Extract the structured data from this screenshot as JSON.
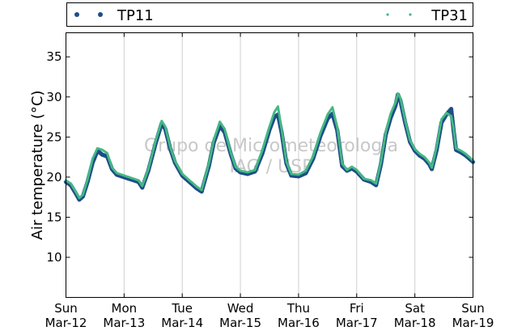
{
  "chart_data": {
    "type": "scatter",
    "title": "",
    "xlabel": "",
    "ylabel": "Air temperature (°C)",
    "x_range": [
      "2017-03-12T00:00",
      "2017-03-19T00:00"
    ],
    "ylim": [
      5,
      38
    ],
    "yticks": [
      10,
      15,
      20,
      25,
      30,
      35
    ],
    "xtick_labels": [
      [
        "Sun",
        "Mar-12"
      ],
      [
        "Mon",
        "Mar-13"
      ],
      [
        "Tue",
        "Mar-14"
      ],
      [
        "Wed",
        "Mar-15"
      ],
      [
        "Thu",
        "Mar-16"
      ],
      [
        "Fri",
        "Mar-17"
      ],
      [
        "Sat",
        "Mar-18"
      ],
      [
        "Sun",
        "Mar-19"
      ]
    ],
    "grid": "vertical",
    "legend_position": "top",
    "watermark": [
      "Grupo de Micrometeorologia",
      "IAG / USP"
    ],
    "series": [
      {
        "name": "TP11",
        "color": "#1f4e87",
        "marker": "dot",
        "points": [
          [
            "2017-03-12T00:00",
            19.4
          ],
          [
            "2017-03-12T02:00",
            19.0
          ],
          [
            "2017-03-12T04:00",
            18.0
          ],
          [
            "2017-03-12T05:30",
            17.2
          ],
          [
            "2017-03-12T07:00",
            17.6
          ],
          [
            "2017-03-12T09:00",
            19.5
          ],
          [
            "2017-03-12T11:00",
            21.8
          ],
          [
            "2017-03-12T13:00",
            23.3
          ],
          [
            "2017-03-12T15:00",
            22.8
          ],
          [
            "2017-03-12T17:00",
            22.6
          ],
          [
            "2017-03-12T19:00",
            21.0
          ],
          [
            "2017-03-12T21:00",
            20.3
          ],
          [
            "2017-03-13T00:00",
            20.0
          ],
          [
            "2017-03-13T03:00",
            19.7
          ],
          [
            "2017-03-13T06:00",
            19.4
          ],
          [
            "2017-03-13T07:30",
            18.7
          ],
          [
            "2017-03-13T10:00",
            20.8
          ],
          [
            "2017-03-13T13:00",
            24.2
          ],
          [
            "2017-03-13T15:30",
            26.7
          ],
          [
            "2017-03-13T17:00",
            26.0
          ],
          [
            "2017-03-13T19:00",
            23.6
          ],
          [
            "2017-03-13T21:00",
            21.8
          ],
          [
            "2017-03-14T00:00",
            20.2
          ],
          [
            "2017-03-14T03:00",
            19.4
          ],
          [
            "2017-03-14T06:00",
            18.6
          ],
          [
            "2017-03-14T08:00",
            18.2
          ],
          [
            "2017-03-14T11:00",
            21.4
          ],
          [
            "2017-03-14T13:00",
            24.3
          ],
          [
            "2017-03-14T15:30",
            26.4
          ],
          [
            "2017-03-14T17:30",
            25.6
          ],
          [
            "2017-03-14T20:00",
            22.9
          ],
          [
            "2017-03-14T22:00",
            21.1
          ],
          [
            "2017-03-15T00:00",
            20.6
          ],
          [
            "2017-03-15T03:00",
            20.4
          ],
          [
            "2017-03-15T06:00",
            20.7
          ],
          [
            "2017-03-15T09:00",
            22.9
          ],
          [
            "2017-03-15T12:00",
            25.9
          ],
          [
            "2017-03-15T14:00",
            27.5
          ],
          [
            "2017-03-15T15:30",
            27.8
          ],
          [
            "2017-03-15T17:00",
            25.6
          ],
          [
            "2017-03-15T19:00",
            21.7
          ],
          [
            "2017-03-15T21:00",
            20.2
          ],
          [
            "2017-03-16T00:00",
            20.1
          ],
          [
            "2017-03-16T03:00",
            20.5
          ],
          [
            "2017-03-16T06:00",
            22.3
          ],
          [
            "2017-03-16T09:00",
            25.1
          ],
          [
            "2017-03-16T12:00",
            27.3
          ],
          [
            "2017-03-16T14:00",
            27.9
          ],
          [
            "2017-03-16T16:00",
            25.8
          ],
          [
            "2017-03-16T18:00",
            21.4
          ],
          [
            "2017-03-16T20:00",
            20.8
          ],
          [
            "2017-03-16T22:00",
            21.1
          ],
          [
            "2017-03-17T00:00",
            20.7
          ],
          [
            "2017-03-17T03:00",
            19.7
          ],
          [
            "2017-03-17T06:00",
            19.4
          ],
          [
            "2017-03-17T08:00",
            19.0
          ],
          [
            "2017-03-17T10:00",
            21.6
          ],
          [
            "2017-03-17T12:00",
            25.3
          ],
          [
            "2017-03-17T14:00",
            27.4
          ],
          [
            "2017-03-17T16:00",
            28.9
          ],
          [
            "2017-03-17T17:00",
            30.3
          ],
          [
            "2017-03-17T18:00",
            29.6
          ],
          [
            "2017-03-17T20:00",
            26.8
          ],
          [
            "2017-03-17T22:00",
            24.4
          ],
          [
            "2017-03-18T00:00",
            23.3
          ],
          [
            "2017-03-18T02:00",
            22.7
          ],
          [
            "2017-03-18T04:00",
            22.3
          ],
          [
            "2017-03-18T06:00",
            21.6
          ],
          [
            "2017-03-18T07:00",
            21.0
          ],
          [
            "2017-03-18T09:00",
            23.4
          ],
          [
            "2017-03-18T11:00",
            26.8
          ],
          [
            "2017-03-18T13:00",
            27.8
          ],
          [
            "2017-03-18T15:00",
            28.5
          ],
          [
            "2017-03-18T16:00",
            25.8
          ],
          [
            "2017-03-18T17:00",
            23.4
          ],
          [
            "2017-03-18T19:00",
            23.1
          ],
          [
            "2017-03-18T21:00",
            22.7
          ],
          [
            "2017-03-19T00:00",
            21.9
          ]
        ]
      },
      {
        "name": "TP31",
        "color": "#45b884",
        "marker": "small-dot",
        "points": [
          [
            "2017-03-12T00:00",
            19.6
          ],
          [
            "2017-03-12T02:00",
            19.2
          ],
          [
            "2017-03-12T04:00",
            18.2
          ],
          [
            "2017-03-12T05:30",
            17.4
          ],
          [
            "2017-03-12T07:00",
            17.8
          ],
          [
            "2017-03-12T09:00",
            19.8
          ],
          [
            "2017-03-12T11:00",
            22.3
          ],
          [
            "2017-03-12T13:00",
            23.6
          ],
          [
            "2017-03-12T15:00",
            23.4
          ],
          [
            "2017-03-12T17:00",
            23.0
          ],
          [
            "2017-03-12T19:00",
            21.2
          ],
          [
            "2017-03-12T21:00",
            20.5
          ],
          [
            "2017-03-13T00:00",
            20.2
          ],
          [
            "2017-03-13T03:00",
            19.9
          ],
          [
            "2017-03-13T06:00",
            19.6
          ],
          [
            "2017-03-13T07:30",
            18.9
          ],
          [
            "2017-03-13T10:00",
            21.0
          ],
          [
            "2017-03-13T13:00",
            24.5
          ],
          [
            "2017-03-13T15:30",
            27.0
          ],
          [
            "2017-03-13T17:00",
            26.3
          ],
          [
            "2017-03-13T19:00",
            23.8
          ],
          [
            "2017-03-13T21:00",
            22.0
          ],
          [
            "2017-03-14T00:00",
            20.4
          ],
          [
            "2017-03-14T03:00",
            19.6
          ],
          [
            "2017-03-14T06:00",
            18.8
          ],
          [
            "2017-03-14T08:00",
            18.4
          ],
          [
            "2017-03-14T11:00",
            21.7
          ],
          [
            "2017-03-14T13:00",
            24.6
          ],
          [
            "2017-03-14T15:30",
            26.9
          ],
          [
            "2017-03-14T17:30",
            26.0
          ],
          [
            "2017-03-14T20:00",
            23.1
          ],
          [
            "2017-03-14T22:00",
            21.3
          ],
          [
            "2017-03-15T00:00",
            20.8
          ],
          [
            "2017-03-15T03:00",
            20.6
          ],
          [
            "2017-03-15T06:00",
            20.9
          ],
          [
            "2017-03-15T09:00",
            23.3
          ],
          [
            "2017-03-15T12:00",
            26.3
          ],
          [
            "2017-03-15T14:00",
            28.1
          ],
          [
            "2017-03-15T15:30",
            28.8
          ],
          [
            "2017-03-15T17:00",
            26.0
          ],
          [
            "2017-03-15T19:00",
            21.9
          ],
          [
            "2017-03-15T21:00",
            20.4
          ],
          [
            "2017-03-16T00:00",
            20.3
          ],
          [
            "2017-03-16T03:00",
            20.8
          ],
          [
            "2017-03-16T06:00",
            22.6
          ],
          [
            "2017-03-16T09:00",
            25.5
          ],
          [
            "2017-03-16T12:00",
            27.8
          ],
          [
            "2017-03-16T14:00",
            28.7
          ],
          [
            "2017-03-16T16:00",
            26.2
          ],
          [
            "2017-03-16T18:00",
            21.7
          ],
          [
            "2017-03-16T20:00",
            20.9
          ],
          [
            "2017-03-16T22:00",
            21.3
          ],
          [
            "2017-03-17T00:00",
            20.9
          ],
          [
            "2017-03-17T03:00",
            19.8
          ],
          [
            "2017-03-17T06:00",
            19.6
          ],
          [
            "2017-03-17T08:00",
            19.2
          ],
          [
            "2017-03-17T10:00",
            21.9
          ],
          [
            "2017-03-17T12:00",
            25.6
          ],
          [
            "2017-03-17T14:00",
            27.9
          ],
          [
            "2017-03-17T16:00",
            29.3
          ],
          [
            "2017-03-17T17:00",
            30.4
          ],
          [
            "2017-03-17T18:00",
            29.9
          ],
          [
            "2017-03-17T20:00",
            27.1
          ],
          [
            "2017-03-17T22:00",
            24.6
          ],
          [
            "2017-03-18T00:00",
            23.5
          ],
          [
            "2017-03-18T02:00",
            22.9
          ],
          [
            "2017-03-18T04:00",
            22.5
          ],
          [
            "2017-03-18T06:00",
            21.8
          ],
          [
            "2017-03-18T07:00",
            21.2
          ],
          [
            "2017-03-18T09:00",
            23.8
          ],
          [
            "2017-03-18T11:00",
            27.2
          ],
          [
            "2017-03-18T13:00",
            28.0
          ],
          [
            "2017-03-18T15:00",
            27.6
          ],
          [
            "2017-03-18T16:00",
            26.0
          ],
          [
            "2017-03-18T17:00",
            23.6
          ],
          [
            "2017-03-18T19:00",
            23.3
          ],
          [
            "2017-03-18T21:00",
            22.9
          ],
          [
            "2017-03-19T00:00",
            22.1
          ]
        ]
      }
    ]
  }
}
